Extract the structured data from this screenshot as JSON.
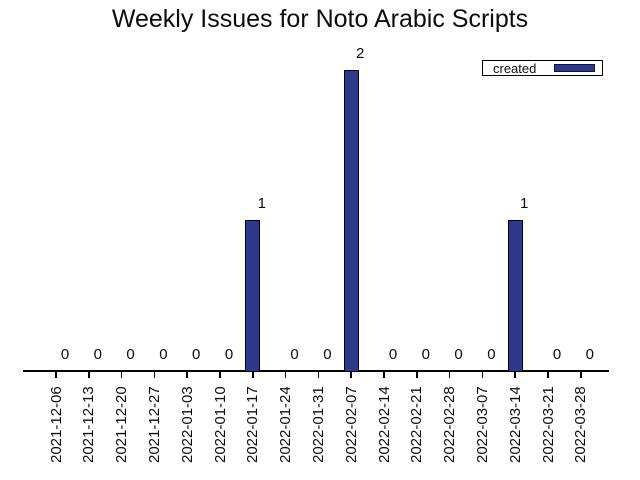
{
  "chart_data": {
    "type": "bar",
    "title": "Weekly Issues for Noto Arabic Scripts",
    "categories": [
      "2021-12-06",
      "2021-12-13",
      "2021-12-20",
      "2021-12-27",
      "2022-01-03",
      "2022-01-10",
      "2022-01-17",
      "2022-01-24",
      "2022-01-31",
      "2022-02-07",
      "2022-02-14",
      "2022-02-21",
      "2022-02-28",
      "2022-03-07",
      "2022-03-14",
      "2022-03-21",
      "2022-03-28"
    ],
    "series": [
      {
        "name": "created",
        "values": [
          0,
          0,
          0,
          0,
          0,
          0,
          1,
          0,
          0,
          2,
          0,
          0,
          0,
          0,
          1,
          0,
          0
        ]
      }
    ],
    "value_labels": [
      "0",
      "0",
      "0",
      "0",
      "0",
      "0",
      "1",
      "0",
      "0",
      "2",
      "0",
      "0",
      "0",
      "0",
      "1",
      "0",
      "0"
    ],
    "xlabel": "",
    "ylabel": "",
    "ylim": [
      0,
      2
    ],
    "grid": false,
    "legend_position": "top-right",
    "bar_color": "#2d3a8c",
    "bar_edge_color": "#000000",
    "axis_color": "#000000",
    "x_tick_rotation_deg": 90
  }
}
